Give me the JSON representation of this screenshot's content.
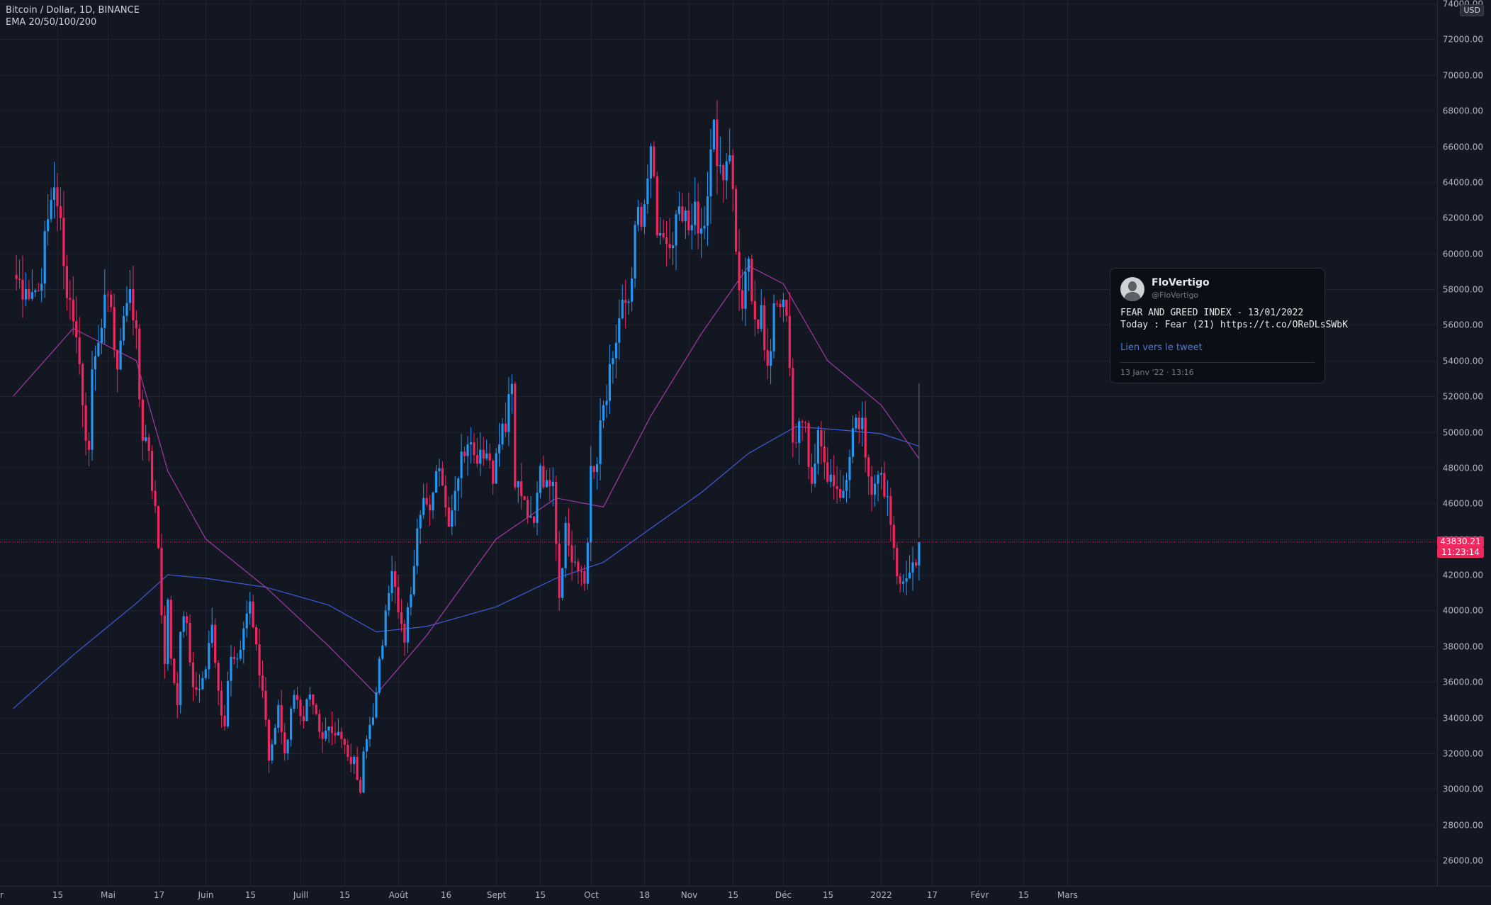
{
  "legend": {
    "symbol": "Bitcoin / Dollar, 1D, BINANCE",
    "indicator": "EMA 20/50/100/200"
  },
  "currency_button": "USD",
  "last_price": {
    "value": "43830.21",
    "countdown": "11:23:14"
  },
  "colors": {
    "background": "#131722",
    "up": "#2196f3",
    "down": "#f0265e",
    "ema_slow": "#3f5bd9",
    "ema_fast": "#a23aa8",
    "grid": "#1e2230"
  },
  "tweet": {
    "name": "FloVertigo",
    "handle": "@FloVertigo",
    "line1": "FEAR AND GREED INDEX - 13/01/2022",
    "line2": "Today : Fear (21) https://t.co/OReDLsSWbK",
    "link": "Lien vers le tweet",
    "time": "13 Janv '22 · 13:16"
  },
  "chart_data": {
    "type": "candlestick",
    "ylim": [
      25000,
      74000
    ],
    "y_ticks": [
      26000,
      28000,
      30000,
      32000,
      34000,
      36000,
      38000,
      40000,
      42000,
      44000,
      46000,
      48000,
      50000,
      52000,
      54000,
      56000,
      58000,
      60000,
      62000,
      64000,
      66000,
      68000,
      70000,
      72000,
      74000
    ],
    "y_tick_labels": [
      "26000.00",
      "28000.00",
      "30000.00",
      "32000.00",
      "34000.00",
      "36000.00",
      "38000.00",
      "40000.00",
      "42000.00",
      "44000.00",
      "46000.00",
      "48000.00",
      "50000.00",
      "52000.00",
      "54000.00",
      "56000.00",
      "58000.00",
      "60000.00",
      "62000.00",
      "64000.00",
      "66000.00",
      "68000.00",
      "70000.00",
      "72000.00",
      "74000.00"
    ],
    "x_ticks": [
      {
        "date": "2021-04-15",
        "label": "15"
      },
      {
        "date": "2021-05-01",
        "label": "Mai"
      },
      {
        "date": "2021-05-17",
        "label": "17"
      },
      {
        "date": "2021-06-01",
        "label": "Juin"
      },
      {
        "date": "2021-06-15",
        "label": "15"
      },
      {
        "date": "2021-07-01",
        "label": "Juill"
      },
      {
        "date": "2021-07-15",
        "label": "15"
      },
      {
        "date": "2021-08-01",
        "label": "Août"
      },
      {
        "date": "2021-08-16",
        "label": "16"
      },
      {
        "date": "2021-09-01",
        "label": "Sept"
      },
      {
        "date": "2021-09-15",
        "label": "15"
      },
      {
        "date": "2021-10-01",
        "label": "Oct"
      },
      {
        "date": "2021-10-18",
        "label": "18"
      },
      {
        "date": "2021-11-01",
        "label": "Nov"
      },
      {
        "date": "2021-11-15",
        "label": "15"
      },
      {
        "date": "2021-12-01",
        "label": "Déc"
      },
      {
        "date": "2021-12-15",
        "label": "15"
      },
      {
        "date": "2022-01-01",
        "label": "2022"
      },
      {
        "date": "2022-01-17",
        "label": "17"
      },
      {
        "date": "2022-02-01",
        "label": "Févr"
      },
      {
        "date": "2022-02-15",
        "label": "15"
      },
      {
        "date": "2022-03-01",
        "label": "Mars"
      }
    ],
    "price_path": [
      [
        "2021-04-01",
        58800
      ],
      [
        "2021-04-05",
        58000
      ],
      [
        "2021-04-09",
        57900
      ],
      [
        "2021-04-13",
        63000
      ],
      [
        "2021-04-14",
        63700
      ],
      [
        "2021-04-16",
        62000
      ],
      [
        "2021-04-18",
        57500
      ],
      [
        "2021-04-20",
        56200
      ],
      [
        "2021-04-22",
        53800
      ],
      [
        "2021-04-23",
        51500
      ],
      [
        "2021-04-25",
        49000
      ],
      [
        "2021-04-26",
        53500
      ],
      [
        "2021-04-28",
        55000
      ],
      [
        "2021-04-30",
        57700
      ],
      [
        "2021-05-02",
        57000
      ],
      [
        "2021-05-04",
        53500
      ],
      [
        "2021-05-06",
        56500
      ],
      [
        "2021-05-08",
        58000
      ],
      [
        "2021-05-10",
        55800
      ],
      [
        "2021-05-12",
        49500
      ],
      [
        "2021-05-13",
        49700
      ],
      [
        "2021-05-15",
        46700
      ],
      [
        "2021-05-17",
        43500
      ],
      [
        "2021-05-19",
        37000
      ],
      [
        "2021-05-20",
        40600
      ],
      [
        "2021-05-21",
        37300
      ],
      [
        "2021-05-23",
        34700
      ],
      [
        "2021-05-24",
        38800
      ],
      [
        "2021-05-26",
        39300
      ],
      [
        "2021-05-28",
        35700
      ],
      [
        "2021-05-30",
        35600
      ],
      [
        "2021-06-01",
        36700
      ],
      [
        "2021-06-03",
        39200
      ],
      [
        "2021-06-05",
        35500
      ],
      [
        "2021-06-07",
        33500
      ],
      [
        "2021-06-09",
        37400
      ],
      [
        "2021-06-11",
        37300
      ],
      [
        "2021-06-13",
        39000
      ],
      [
        "2021-06-15",
        40500
      ],
      [
        "2021-06-17",
        38100
      ],
      [
        "2021-06-19",
        35500
      ],
      [
        "2021-06-21",
        31600
      ],
      [
        "2021-06-22",
        32500
      ],
      [
        "2021-06-24",
        34700
      ],
      [
        "2021-06-26",
        32000
      ],
      [
        "2021-06-28",
        34500
      ],
      [
        "2021-06-30",
        35000
      ],
      [
        "2021-07-02",
        33800
      ],
      [
        "2021-07-04",
        35300
      ],
      [
        "2021-07-06",
        34200
      ],
      [
        "2021-07-08",
        32800
      ],
      [
        "2021-07-10",
        33500
      ],
      [
        "2021-07-12",
        33000
      ],
      [
        "2021-07-14",
        32800
      ],
      [
        "2021-07-16",
        31800
      ],
      [
        "2021-07-18",
        31800
      ],
      [
        "2021-07-20",
        29800
      ],
      [
        "2021-07-21",
        32100
      ],
      [
        "2021-07-23",
        33600
      ],
      [
        "2021-07-25",
        35400
      ],
      [
        "2021-07-26",
        37300
      ],
      [
        "2021-07-28",
        40000
      ],
      [
        "2021-07-30",
        42200
      ],
      [
        "2021-08-01",
        39900
      ],
      [
        "2021-08-03",
        38200
      ],
      [
        "2021-08-05",
        40900
      ],
      [
        "2021-08-07",
        44600
      ],
      [
        "2021-08-09",
        46300
      ],
      [
        "2021-08-11",
        45600
      ],
      [
        "2021-08-13",
        47800
      ],
      [
        "2021-08-15",
        47000
      ],
      [
        "2021-08-17",
        44700
      ],
      [
        "2021-08-19",
        46700
      ],
      [
        "2021-08-21",
        48900
      ],
      [
        "2021-08-23",
        49300
      ],
      [
        "2021-08-25",
        48700
      ],
      [
        "2021-08-27",
        49000
      ],
      [
        "2021-08-29",
        48800
      ],
      [
        "2021-08-31",
        47100
      ],
      [
        "2021-09-02",
        49300
      ],
      [
        "2021-09-04",
        50000
      ],
      [
        "2021-09-06",
        52700
      ],
      [
        "2021-09-07",
        46900
      ],
      [
        "2021-09-09",
        46400
      ],
      [
        "2021-09-11",
        45200
      ],
      [
        "2021-09-13",
        44900
      ],
      [
        "2021-09-15",
        48100
      ],
      [
        "2021-09-17",
        47300
      ],
      [
        "2021-09-19",
        47200
      ],
      [
        "2021-09-21",
        40700
      ],
      [
        "2021-09-23",
        44900
      ],
      [
        "2021-09-25",
        42700
      ],
      [
        "2021-09-27",
        42200
      ],
      [
        "2021-09-29",
        41500
      ],
      [
        "2021-09-30",
        43800
      ],
      [
        "2021-10-01",
        48100
      ],
      [
        "2021-10-03",
        48200
      ],
      [
        "2021-10-05",
        51500
      ],
      [
        "2021-10-07",
        53800
      ],
      [
        "2021-10-09",
        55000
      ],
      [
        "2021-10-11",
        57400
      ],
      [
        "2021-10-13",
        57300
      ],
      [
        "2021-10-15",
        61600
      ],
      [
        "2021-10-17",
        61500
      ],
      [
        "2021-10-19",
        64200
      ],
      [
        "2021-10-20",
        66000
      ],
      [
        "2021-10-22",
        61000
      ],
      [
        "2021-10-24",
        60900
      ],
      [
        "2021-10-26",
        60300
      ],
      [
        "2021-10-28",
        62200
      ],
      [
        "2021-10-30",
        61800
      ],
      [
        "2021-11-01",
        61300
      ],
      [
        "2021-11-03",
        62900
      ],
      [
        "2021-11-05",
        61400
      ],
      [
        "2021-11-07",
        63200
      ],
      [
        "2021-11-09",
        67500
      ],
      [
        "2021-11-10",
        64900
      ],
      [
        "2021-11-12",
        64100
      ],
      [
        "2021-11-14",
        65500
      ],
      [
        "2021-11-16",
        60100
      ],
      [
        "2021-11-18",
        56900
      ],
      [
        "2021-11-20",
        59700
      ],
      [
        "2021-11-22",
        56300
      ],
      [
        "2021-11-24",
        57100
      ],
      [
        "2021-11-26",
        53700
      ],
      [
        "2021-11-28",
        57200
      ],
      [
        "2021-11-30",
        57000
      ],
      [
        "2021-12-02",
        56500
      ],
      [
        "2021-12-04",
        49400
      ],
      [
        "2021-12-06",
        50600
      ],
      [
        "2021-12-08",
        50500
      ],
      [
        "2021-12-10",
        47100
      ],
      [
        "2021-12-12",
        50100
      ],
      [
        "2021-12-14",
        48300
      ],
      [
        "2021-12-16",
        47600
      ],
      [
        "2021-12-18",
        46800
      ],
      [
        "2021-12-20",
        46700
      ],
      [
        "2021-12-22",
        48600
      ],
      [
        "2021-12-24",
        50800
      ],
      [
        "2021-12-26",
        50800
      ],
      [
        "2021-12-28",
        47500
      ],
      [
        "2021-12-30",
        47100
      ],
      [
        "2022-01-01",
        47700
      ],
      [
        "2022-01-03",
        46400
      ],
      [
        "2022-01-05",
        43500
      ],
      [
        "2022-01-07",
        41500
      ],
      [
        "2022-01-09",
        41800
      ],
      [
        "2022-01-11",
        42700
      ],
      [
        "2022-01-13",
        43830
      ]
    ],
    "ema_slow_path": [
      [
        "2021-04-01",
        34500
      ],
      [
        "2021-04-20",
        37500
      ],
      [
        "2021-05-10",
        40400
      ],
      [
        "2021-05-20",
        42000
      ],
      [
        "2021-06-01",
        41800
      ],
      [
        "2021-06-20",
        41300
      ],
      [
        "2021-07-10",
        40300
      ],
      [
        "2021-07-25",
        38800
      ],
      [
        "2021-08-10",
        39100
      ],
      [
        "2021-09-01",
        40200
      ],
      [
        "2021-09-20",
        41800
      ],
      [
        "2021-10-05",
        42700
      ],
      [
        "2021-10-20",
        44600
      ],
      [
        "2021-11-05",
        46600
      ],
      [
        "2021-11-20",
        48800
      ],
      [
        "2021-12-05",
        50300
      ],
      [
        "2021-12-20",
        50100
      ],
      [
        "2022-01-01",
        49900
      ],
      [
        "2022-01-13",
        49200
      ]
    ],
    "ema_fast_path": [
      [
        "2021-04-01",
        52000
      ],
      [
        "2021-04-20",
        55800
      ],
      [
        "2021-05-10",
        54000
      ],
      [
        "2021-05-20",
        47800
      ],
      [
        "2021-06-01",
        44000
      ],
      [
        "2021-06-20",
        41300
      ],
      [
        "2021-07-10",
        38000
      ],
      [
        "2021-07-25",
        35300
      ],
      [
        "2021-08-10",
        38600
      ],
      [
        "2021-09-01",
        44000
      ],
      [
        "2021-09-20",
        46300
      ],
      [
        "2021-10-05",
        45800
      ],
      [
        "2021-10-20",
        50900
      ],
      [
        "2021-11-05",
        55500
      ],
      [
        "2021-11-20",
        59300
      ],
      [
        "2021-12-01",
        58300
      ],
      [
        "2021-12-15",
        54000
      ],
      [
        "2022-01-01",
        51500
      ],
      [
        "2022-01-13",
        48500
      ]
    ]
  }
}
